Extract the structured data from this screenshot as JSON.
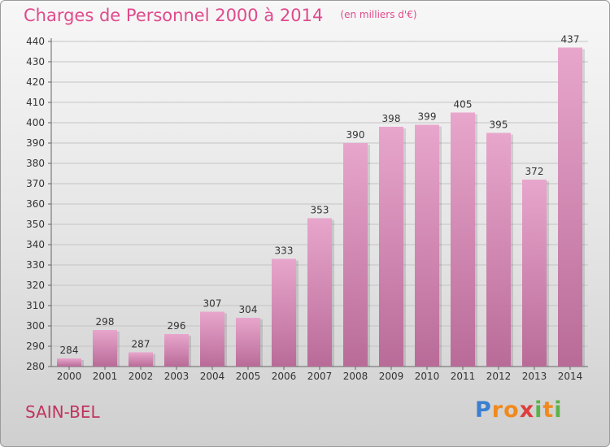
{
  "chart_data": {
    "type": "bar",
    "title": "Charges de Personnel 2000 à 2014",
    "unit_note": "(en milliers d'€)",
    "categories": [
      "2000",
      "2001",
      "2002",
      "2003",
      "2004",
      "2005",
      "2006",
      "2007",
      "2008",
      "2009",
      "2010",
      "2011",
      "2012",
      "2013",
      "2014"
    ],
    "values": [
      284,
      298,
      287,
      296,
      307,
      304,
      333,
      353,
      390,
      398,
      399,
      405,
      395,
      372,
      437
    ],
    "ylim": [
      280,
      440
    ],
    "yticks": [
      280,
      290,
      300,
      310,
      320,
      330,
      340,
      350,
      360,
      370,
      380,
      390,
      400,
      410,
      420,
      430,
      440
    ],
    "grid": true,
    "bar_color": "#dc8fbc",
    "xlabel": "",
    "ylabel": ""
  },
  "place_name": "SAIN-BEL",
  "logo": {
    "letters": [
      "P",
      "r",
      "o",
      "x",
      "i",
      "t",
      "i"
    ],
    "colors": [
      "#3a7fd0",
      "#f08a1c",
      "#f08a1c",
      "#e03c3c",
      "#5db14a",
      "#f08a1c",
      "#5db14a"
    ]
  }
}
